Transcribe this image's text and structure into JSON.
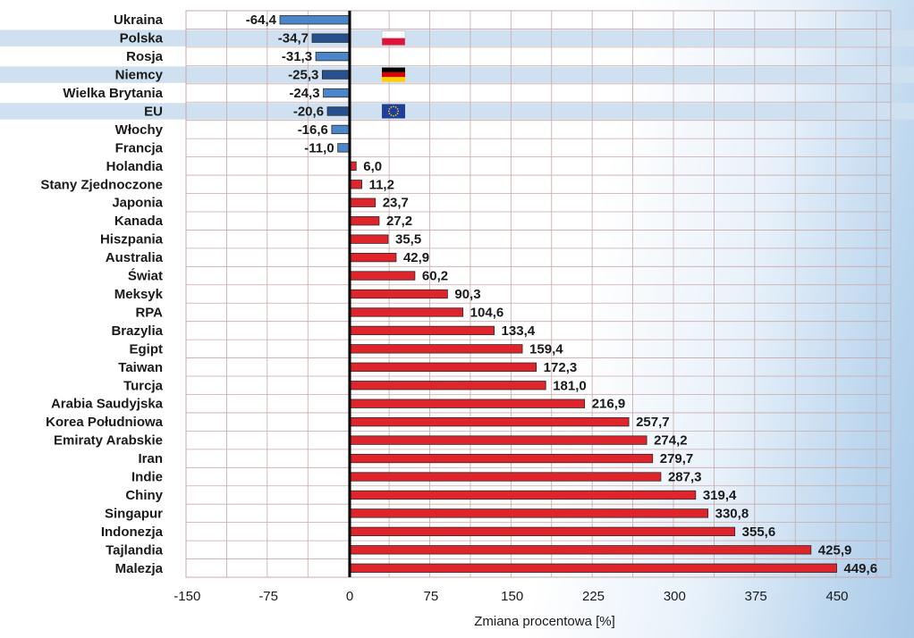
{
  "chart_data": {
    "type": "bar",
    "orientation": "horizontal",
    "title": "",
    "xlabel": "Zmiana procentowa [%]",
    "ylabel": "",
    "xlim": [
      -150,
      450
    ],
    "xticks": [
      -150,
      -75,
      0,
      75,
      150,
      225,
      300,
      375,
      450
    ],
    "xtick_labels": [
      "-150",
      "-75",
      "0",
      "75",
      "150",
      "225",
      "300",
      "375",
      "450"
    ],
    "grid": true,
    "categories": [
      "Ukraina",
      "Polska",
      "Rosja",
      "Niemcy",
      "Wielka Brytania",
      "EU",
      "Włochy",
      "Francja",
      "Holandia",
      "Stany Zjednoczone",
      "Japonia",
      "Kanada",
      "Hiszpania",
      "Australia",
      "Świat",
      "Meksyk",
      "RPA",
      "Brazylia",
      "Egipt",
      "Taiwan",
      "Turcja",
      "Arabia Saudyjska",
      "Korea Południowa",
      "Emiraty Arabskie",
      "Iran",
      "Indie",
      "Chiny",
      "Singapur",
      "Indonezja",
      "Tajlandia",
      "Malezja"
    ],
    "values": [
      -64.4,
      -34.7,
      -31.3,
      -25.3,
      -24.3,
      -20.6,
      -16.6,
      -11.0,
      6.0,
      11.2,
      23.7,
      27.2,
      35.5,
      42.9,
      60.2,
      90.3,
      104.6,
      133.4,
      159.4,
      172.3,
      181.0,
      216.9,
      257.7,
      274.2,
      279.7,
      287.3,
      319.4,
      330.8,
      355.6,
      425.9,
      449.6
    ],
    "value_labels": [
      "-64,4",
      "-34,7",
      "-31,3",
      "-25,3",
      "-24,3",
      "-20,6",
      "-16,6",
      "-11,0",
      "6,0",
      "11,2",
      "23,7",
      "27,2",
      "35,5",
      "42,9",
      "60,2",
      "90,3",
      "104,6",
      "133,4",
      "159,4",
      "172,3",
      "181,0",
      "216,9",
      "257,7",
      "274,2",
      "279,7",
      "287,3",
      "319,4",
      "330,8",
      "355,6",
      "425,9",
      "449,6"
    ],
    "highlighted": [
      "Polska",
      "Niemcy",
      "EU"
    ],
    "flags": {
      "Polska": "poland-flag-icon",
      "Niemcy": "germany-flag-icon",
      "EU": "eu-flag-icon"
    },
    "colors": {
      "negative": "#4a86c8",
      "negative_highlight": "#27508f",
      "positive": "#e0242b",
      "highlight_band": "#cfe0f1",
      "zero_line": "#000000",
      "grid": "#c9a9a9"
    }
  }
}
